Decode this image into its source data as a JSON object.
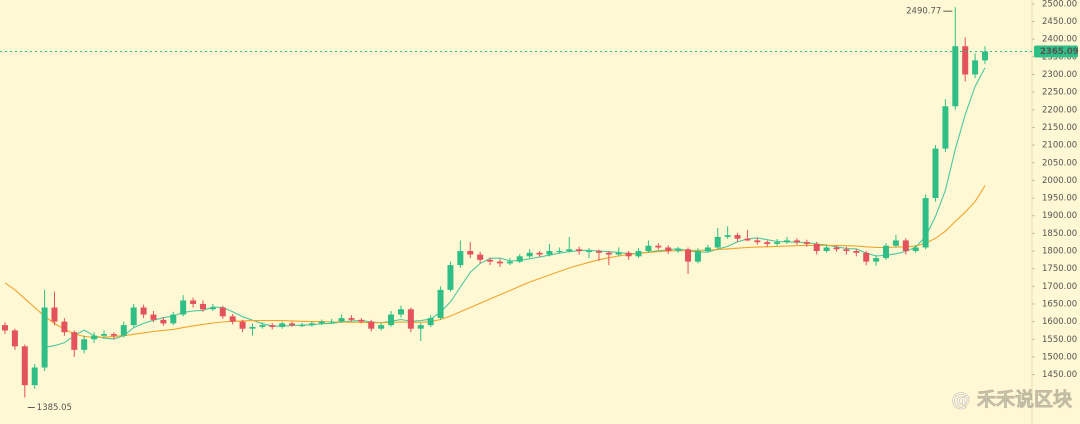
{
  "chart_data": {
    "type": "candlestick",
    "up_color": "#2fbf86",
    "down_color": "#e4535b",
    "ylim": [
      1310,
      2511
    ],
    "yticks": [
      {
        "value": 2500,
        "label": "2500.00"
      },
      {
        "value": 2450,
        "label": "2450.00"
      },
      {
        "value": 2400,
        "label": "2400.00"
      },
      {
        "value": 2350,
        "label": "2350.00"
      },
      {
        "value": 2300,
        "label": "2300.00"
      },
      {
        "value": 2250,
        "label": "2250.00"
      },
      {
        "value": 2200,
        "label": "2200.00"
      },
      {
        "value": 2150,
        "label": "2150.00"
      },
      {
        "value": 2100,
        "label": "2100.00"
      },
      {
        "value": 2050,
        "label": "2050.00"
      },
      {
        "value": 2000,
        "label": "2000.00"
      },
      {
        "value": 1950,
        "label": "1950.00"
      },
      {
        "value": 1900,
        "label": "1900.00"
      },
      {
        "value": 1850,
        "label": "1850.00"
      },
      {
        "value": 1800,
        "label": "1800.00"
      },
      {
        "value": 1750,
        "label": "1750.00"
      },
      {
        "value": 1700,
        "label": "1700.00"
      },
      {
        "value": 1650,
        "label": "1650.00"
      },
      {
        "value": 1600,
        "label": "1600.00"
      },
      {
        "value": 1550,
        "label": "1550.00"
      },
      {
        "value": 1500,
        "label": "1500.00"
      },
      {
        "value": 1450,
        "label": "1450.00"
      }
    ],
    "grid": false,
    "last_price_line": true,
    "ohlc": [
      [
        1590,
        1598,
        1565,
        1575
      ],
      [
        1575,
        1580,
        1520,
        1530
      ],
      [
        1530,
        1535,
        1385.05,
        1420
      ],
      [
        1420,
        1480,
        1410,
        1470
      ],
      [
        1470,
        1690,
        1460,
        1640
      ],
      [
        1640,
        1685,
        1590,
        1600
      ],
      [
        1600,
        1610,
        1560,
        1570
      ],
      [
        1570,
        1575,
        1500,
        1520
      ],
      [
        1520,
        1560,
        1510,
        1550
      ],
      [
        1550,
        1570,
        1540,
        1560
      ],
      [
        1560,
        1575,
        1555,
        1565
      ],
      [
        1565,
        1570,
        1550,
        1560
      ],
      [
        1560,
        1600,
        1555,
        1590
      ],
      [
        1590,
        1650,
        1585,
        1640
      ],
      [
        1640,
        1648,
        1610,
        1620
      ],
      [
        1620,
        1630,
        1598,
        1605
      ],
      [
        1605,
        1612,
        1588,
        1595
      ],
      [
        1595,
        1628,
        1590,
        1620
      ],
      [
        1620,
        1675,
        1615,
        1660
      ],
      [
        1660,
        1668,
        1640,
        1650
      ],
      [
        1650,
        1660,
        1628,
        1635
      ],
      [
        1635,
        1650,
        1630,
        1640
      ],
      [
        1640,
        1645,
        1608,
        1615
      ],
      [
        1615,
        1622,
        1592,
        1600
      ],
      [
        1600,
        1605,
        1570,
        1580
      ],
      [
        1580,
        1595,
        1560,
        1585
      ],
      [
        1585,
        1598,
        1580,
        1590
      ],
      [
        1590,
        1596,
        1578,
        1585
      ],
      [
        1585,
        1600,
        1580,
        1595
      ],
      [
        1595,
        1600,
        1585,
        1590
      ],
      [
        1590,
        1597,
        1584,
        1590
      ],
      [
        1590,
        1600,
        1586,
        1595
      ],
      [
        1595,
        1606,
        1590,
        1600
      ],
      [
        1600,
        1608,
        1594,
        1600
      ],
      [
        1600,
        1620,
        1596,
        1610
      ],
      [
        1610,
        1618,
        1600,
        1605
      ],
      [
        1605,
        1610,
        1595,
        1600
      ],
      [
        1600,
        1605,
        1572,
        1580
      ],
      [
        1580,
        1596,
        1575,
        1590
      ],
      [
        1590,
        1630,
        1586,
        1620
      ],
      [
        1620,
        1645,
        1612,
        1635
      ],
      [
        1635,
        1640,
        1570,
        1580
      ],
      [
        1580,
        1596,
        1545,
        1590
      ],
      [
        1590,
        1618,
        1585,
        1610
      ],
      [
        1610,
        1700,
        1605,
        1690
      ],
      [
        1690,
        1770,
        1685,
        1760
      ],
      [
        1760,
        1830,
        1752,
        1800
      ],
      [
        1800,
        1825,
        1780,
        1790
      ],
      [
        1790,
        1798,
        1765,
        1775
      ],
      [
        1775,
        1782,
        1760,
        1770
      ],
      [
        1770,
        1778,
        1755,
        1765
      ],
      [
        1765,
        1780,
        1760,
        1770
      ],
      [
        1770,
        1792,
        1766,
        1785
      ],
      [
        1785,
        1805,
        1780,
        1795
      ],
      [
        1795,
        1800,
        1782,
        1790
      ],
      [
        1790,
        1820,
        1785,
        1800
      ],
      [
        1800,
        1810,
        1792,
        1800
      ],
      [
        1800,
        1840,
        1796,
        1805
      ],
      [
        1805,
        1812,
        1790,
        1800
      ],
      [
        1800,
        1808,
        1780,
        1800
      ],
      [
        1800,
        1804,
        1772,
        1795
      ],
      [
        1795,
        1800,
        1760,
        1790
      ],
      [
        1790,
        1810,
        1786,
        1795
      ],
      [
        1795,
        1800,
        1775,
        1785
      ],
      [
        1785,
        1808,
        1780,
        1800
      ],
      [
        1800,
        1830,
        1795,
        1815
      ],
      [
        1815,
        1822,
        1804,
        1810
      ],
      [
        1810,
        1816,
        1792,
        1800
      ],
      [
        1800,
        1812,
        1795,
        1805
      ],
      [
        1805,
        1810,
        1735,
        1770
      ],
      [
        1770,
        1808,
        1765,
        1800
      ],
      [
        1800,
        1818,
        1795,
        1810
      ],
      [
        1810,
        1865,
        1805,
        1840
      ],
      [
        1840,
        1870,
        1834,
        1845
      ],
      [
        1845,
        1852,
        1826,
        1835
      ],
      [
        1835,
        1860,
        1828,
        1830
      ],
      [
        1830,
        1838,
        1818,
        1825
      ],
      [
        1825,
        1830,
        1812,
        1820
      ],
      [
        1820,
        1834,
        1815,
        1825
      ],
      [
        1825,
        1840,
        1820,
        1830
      ],
      [
        1830,
        1836,
        1818,
        1825
      ],
      [
        1825,
        1832,
        1812,
        1820
      ],
      [
        1820,
        1826,
        1790,
        1800
      ],
      [
        1800,
        1818,
        1795,
        1810
      ],
      [
        1810,
        1816,
        1798,
        1805
      ],
      [
        1805,
        1812,
        1790,
        1800
      ],
      [
        1800,
        1806,
        1785,
        1795
      ],
      [
        1795,
        1800,
        1760,
        1770
      ],
      [
        1770,
        1788,
        1758,
        1780
      ],
      [
        1780,
        1822,
        1775,
        1815
      ],
      [
        1815,
        1845,
        1810,
        1830
      ],
      [
        1830,
        1836,
        1790,
        1800
      ],
      [
        1800,
        1818,
        1795,
        1810
      ],
      [
        1810,
        1960,
        1805,
        1950
      ],
      [
        1950,
        2100,
        1940,
        2090
      ],
      [
        2090,
        2230,
        2080,
        2210
      ],
      [
        2210,
        2490.77,
        2200,
        2380
      ],
      [
        2380,
        2405,
        2280,
        2300
      ],
      [
        2300,
        2360,
        2290,
        2340
      ],
      [
        2340,
        2380,
        2330,
        2365.09
      ]
    ],
    "moving_averages": [
      {
        "color": "#4cc79f",
        "values": [
          null,
          null,
          null,
          null,
          1527,
          1532,
          1540,
          1560,
          1576,
          1560,
          1553,
          1551,
          1560,
          1583,
          1595,
          1604,
          1611,
          1616,
          1626,
          1630,
          1632,
          1641,
          1640,
          1628,
          1614,
          1604,
          1594,
          1588,
          1587,
          1589,
          1590,
          1591,
          1594,
          1595,
          1599,
          1602,
          1603,
          1599,
          1597,
          1601,
          1606,
          1601,
          1603,
          1607,
          1627,
          1656,
          1698,
          1740,
          1765,
          1779,
          1780,
          1772,
          1773,
          1778,
          1783,
          1788,
          1794,
          1798,
          1801,
          1802,
          1800,
          1798,
          1796,
          1793,
          1793,
          1797,
          1801,
          1803,
          1807,
          1800,
          1797,
          1797,
          1805,
          1813,
          1826,
          1834,
          1837,
          1832,
          1827,
          1826,
          1825,
          1824,
          1820,
          1817,
          1812,
          1807,
          1806,
          1794,
          1786,
          1788,
          1792,
          1799,
          1811,
          1841,
          1898,
          1972,
          2088,
          2186,
          2266,
          2319
        ]
      },
      {
        "color": "#f2a52a",
        "values": [
          1710,
          1690,
          1665,
          1640,
          1615,
          1595,
          1578,
          1565,
          1558,
          1555,
          1556,
          1558,
          1560,
          1564,
          1568,
          1572,
          1575,
          1578,
          1583,
          1588,
          1592,
          1596,
          1599,
          1601,
          1602,
          1603,
          1603,
          1603,
          1603,
          1602,
          1601,
          1600,
          1600,
          1599,
          1599,
          1598,
          1598,
          1597,
          1597,
          1598,
          1599,
          1598,
          1598,
          1600,
          1606,
          1616,
          1628,
          1640,
          1652,
          1664,
          1676,
          1688,
          1700,
          1712,
          1722,
          1732,
          1742,
          1752,
          1760,
          1768,
          1775,
          1781,
          1786,
          1790,
          1793,
          1796,
          1798,
          1800,
          1801,
          1801,
          1802,
          1802,
          1804,
          1806,
          1808,
          1810,
          1811,
          1812,
          1813,
          1814,
          1815,
          1816,
          1816,
          1816,
          1816,
          1815,
          1814,
          1812,
          1810,
          1810,
          1811,
          1812,
          1814,
          1822,
          1836,
          1856,
          1884,
          1910,
          1940,
          1985
        ]
      }
    ],
    "watermark": "@ 禾禾说区块"
  }
}
